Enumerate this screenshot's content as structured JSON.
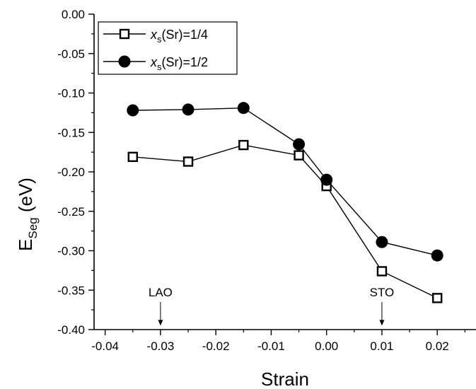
{
  "chart_data": {
    "type": "line",
    "title": "",
    "xlabel": "Strain",
    "ylabel": {
      "main": "E",
      "sub": "Seg",
      "rest": " (eV)"
    },
    "xlim": [
      -0.042,
      0.027
    ],
    "ylim": [
      -0.4,
      0.0
    ],
    "x_ticks": [
      -0.04,
      -0.03,
      -0.02,
      -0.01,
      0.0,
      0.01,
      0.02
    ],
    "x_tick_labels": [
      "-0.04",
      "-0.03",
      "-0.02",
      "-0.01",
      "0.00",
      "0.01",
      "0.02"
    ],
    "y_ticks": [
      0.0,
      -0.05,
      -0.1,
      -0.15,
      -0.2,
      -0.25,
      -0.3,
      -0.35,
      -0.4
    ],
    "y_tick_labels": [
      "0.00",
      "-0.05",
      "-0.10",
      "-0.15",
      "-0.20",
      "-0.25",
      "-0.30",
      "-0.35",
      "-0.40"
    ],
    "grid": false,
    "legend_position": "top-left",
    "series": [
      {
        "name": "x_s(Sr)=1/4",
        "legend": {
          "var": "x",
          "sub": "s",
          "rest": "(Sr)=1/4"
        },
        "marker": "open-square",
        "color": "#000000",
        "x": [
          -0.035,
          -0.025,
          -0.015,
          -0.005,
          0.0,
          0.01,
          0.02
        ],
        "y": [
          -0.181,
          -0.187,
          -0.166,
          -0.179,
          -0.218,
          -0.326,
          -0.36
        ]
      },
      {
        "name": "x_s(Sr)=1/2",
        "legend": {
          "var": "x",
          "sub": "s",
          "rest": "(Sr)=1/2"
        },
        "marker": "filled-circle",
        "color": "#000000",
        "x": [
          -0.035,
          -0.025,
          -0.015,
          -0.005,
          0.0,
          0.01,
          0.02
        ],
        "y": [
          -0.122,
          -0.121,
          -0.119,
          -0.165,
          -0.21,
          -0.289,
          -0.306
        ]
      }
    ],
    "annotations": [
      {
        "label": "LAO",
        "x": -0.03,
        "y_text": -0.358,
        "arrow_from": -0.365,
        "arrow_to": -0.395
      },
      {
        "label": "STO",
        "x": 0.01,
        "y_text": -0.358,
        "arrow_from": -0.365,
        "arrow_to": -0.395
      }
    ]
  }
}
